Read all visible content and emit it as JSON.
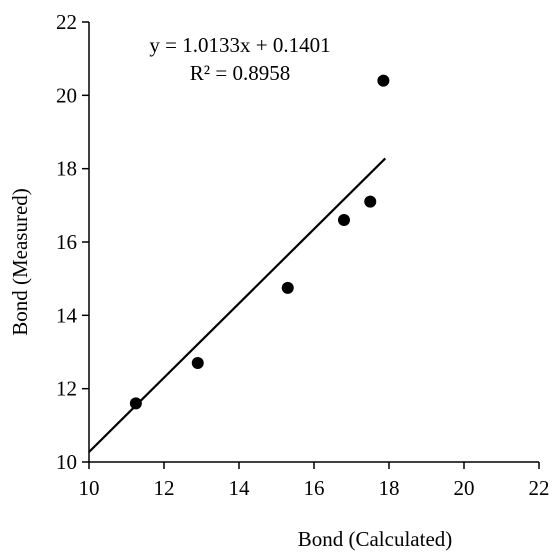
{
  "chart_data": {
    "type": "scatter",
    "xlabel": "Bond (Calculated)",
    "ylabel": "Bond (Measured)",
    "xlim": [
      10,
      22
    ],
    "ylim": [
      10,
      22
    ],
    "x_ticks": [
      10,
      12,
      14,
      16,
      18,
      20,
      22
    ],
    "y_ticks": [
      10,
      12,
      14,
      16,
      18,
      20,
      22
    ],
    "grid": false,
    "colors": {
      "marker": "#000000",
      "axis": "#000000",
      "trendline": "#000000"
    },
    "series": [
      {
        "points": [
          {
            "x": 11.25,
            "y": 11.6
          },
          {
            "x": 12.9,
            "y": 12.7
          },
          {
            "x": 15.3,
            "y": 14.75
          },
          {
            "x": 16.8,
            "y": 16.6
          },
          {
            "x": 17.5,
            "y": 17.1
          },
          {
            "x": 17.85,
            "y": 20.4
          }
        ]
      }
    ],
    "trendline": {
      "type": "linear",
      "slope": 1.0133,
      "intercept": 0.1401,
      "x_range": [
        10,
        17.9
      ],
      "equation_label": "y = 1.0133x + 0.1401",
      "r2_label": "R² = 0.8958"
    }
  }
}
